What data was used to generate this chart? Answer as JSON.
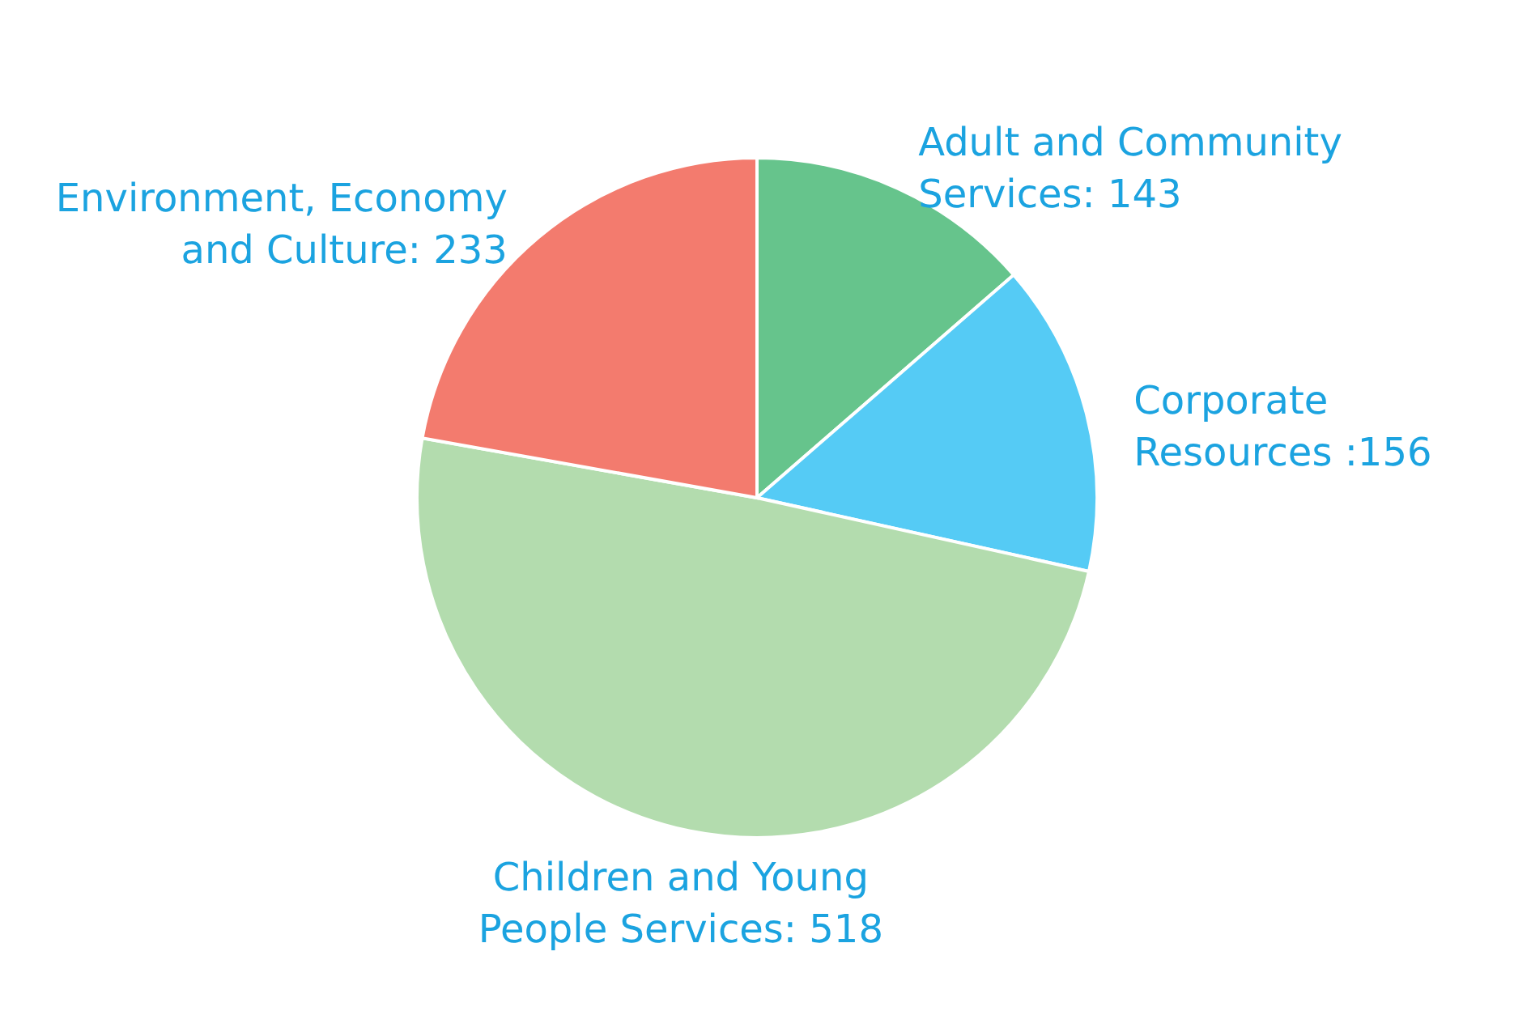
{
  "chart_data": {
    "type": "pie",
    "categories": [
      "Adult and Community Services",
      "Corporate Resources",
      "Children and Young People Services",
      "Environment, Economy and Culture"
    ],
    "values": [
      143,
      156,
      518,
      233
    ],
    "value_labels": [
      ": 143",
      " :156",
      ": 518",
      ": 233"
    ],
    "colors": [
      "#66c48c",
      "#55cbf5",
      "#b3dcae",
      "#f37b6e"
    ]
  }
}
